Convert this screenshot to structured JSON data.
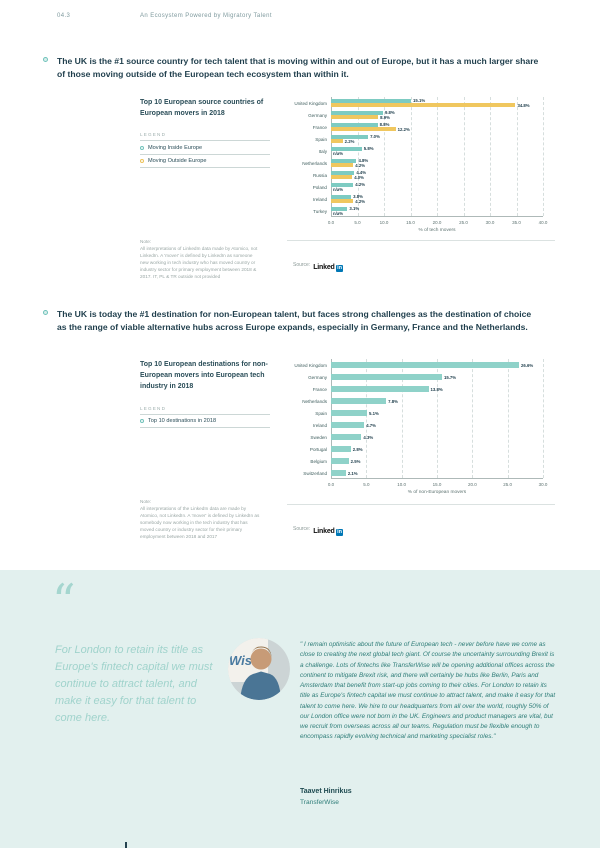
{
  "page": {
    "section_number": "04.3",
    "section_title": "An Ecosystem Powered by Migratory Talent"
  },
  "bullets": [
    {
      "text": "The UK is the #1 source country for tech talent that is moving within and out of Europe, but it has a much larger share of those moving outside of the European tech ecosystem than within it."
    },
    {
      "text": "The UK is today the #1 destination for non-European talent, but faces strong challenges as the destination of choice as the range of viable alternative hubs across Europe expands, especially in Germany, France and the Netherlands."
    }
  ],
  "charts": [
    {
      "title": "Top 10 European source countries of European movers in 2018",
      "legend_label": "LEGEND",
      "legend": [
        {
          "label": "Moving Inside Europe",
          "color": "#6fc2ba"
        },
        {
          "label": "Moving Outside Europe",
          "color": "#edc35a"
        }
      ],
      "note": "Note:\nAll interpretations of LinkedIn data made by Atomico, not LinkedIn. A 'mover' is defined by LinkedIn as someone new working in tech industry who has moved country or industry sector for primary employment between 2018 & 2017. IT, PL & TR outside not provided",
      "source": {
        "label": "Source:",
        "brand": "Linked",
        "brand_suffix": "in"
      },
      "chart_data": {
        "type": "bar",
        "orientation": "horizontal",
        "title": "Top 10 European source countries of European movers in 2018",
        "categories": [
          "United Kingdom",
          "Germany",
          "France",
          "Spain",
          "Italy",
          "Netherlands",
          "Russia",
          "Poland",
          "Ireland",
          "Turkey"
        ],
        "series": [
          {
            "name": "Moving Inside Europe",
            "color": "#7dcbc2",
            "values": [
              15.1,
              9.8,
              8.8,
              7.0,
              5.8,
              4.8,
              4.4,
              4.2,
              3.8,
              3.1
            ],
            "labels": [
              "15.1%",
              "9.8%",
              "8.8%",
              "7.0%",
              "5.8%",
              "4.8%",
              "4.4%",
              "4.2%",
              "3.8%",
              "3.1%"
            ]
          },
          {
            "name": "Moving Outside Europe",
            "color": "#f0c75f",
            "values": [
              34.8,
              8.9,
              12.2,
              2.2,
              null,
              4.2,
              4.0,
              null,
              4.2,
              null
            ],
            "labels": [
              "34.8%",
              "8.9%",
              "12.2%",
              "2.2%",
              "n/a%",
              "4.2%",
              "4.0%",
              "n/a%",
              "4.2%",
              "n/a%"
            ]
          }
        ],
        "xlabel": "% of tech movers",
        "xlim": [
          0,
          40
        ],
        "xticks": [
          "0.0",
          "5.0",
          "10.0",
          "15.0",
          "20.0",
          "25.0",
          "30.0",
          "35.0",
          "40.0"
        ],
        "grid": true,
        "legend_position": "left"
      }
    },
    {
      "title": "Top 10 European destinations for non-European movers into European tech industry in 2018",
      "legend_label": "LEGEND",
      "legend": [
        {
          "label": "Top 10 destinations in 2018",
          "color": "#6fc2ba"
        }
      ],
      "note": "Note:\nAll interpretations of the LinkedIn data are made by Atomico, not LinkedIn. A 'mover' is defined by LinkedIn as somebody now working in the tech industry that has moved country or industry sector for their primary employment between 2018 and 2017",
      "source": {
        "label": "Source:",
        "brand": "Linked",
        "brand_suffix": "in"
      },
      "chart_data": {
        "type": "bar",
        "orientation": "horizontal",
        "title": "Top 10 European destinations for non-European movers into European tech industry in 2018",
        "categories": [
          "United Kingdom",
          "Germany",
          "France",
          "Netherlands",
          "Spain",
          "Ireland",
          "Sweden",
          "Portugal",
          "Belgium",
          "Switzerland"
        ],
        "series": [
          {
            "name": "Top 10 destinations in 2018",
            "color": "#8fd2c9",
            "values": [
              26.6,
              15.7,
              13.8,
              7.8,
              5.1,
              4.7,
              4.3,
              2.8,
              2.5,
              2.1
            ],
            "labels": [
              "26.6%",
              "15.7%",
              "13.8%",
              "7.8%",
              "5.1%",
              "4.7%",
              "4.3%",
              "2.8%",
              "2.5%",
              "2.1%"
            ]
          }
        ],
        "xlabel": "% of non-European movers",
        "xlim": [
          0,
          30
        ],
        "xticks": [
          "0.0",
          "5.0",
          "10.0",
          "15.0",
          "20.0",
          "25.0",
          "30.0"
        ],
        "grid": true,
        "legend_position": "left"
      }
    }
  ],
  "quote": {
    "pull_quote": "For London to retain its title as Europe's fintech capital we must continue to attract talent, and make it easy for that talent to come here.",
    "full_quote": "\" I remain optimistic about the future of European tech - never before have we come as close to creating the next global tech giant. Of course the uncertainty surrounding Brexit is a challenge. Lots of fintechs like TransferWise will be opening additional offices across the continent to mitigate Brexit risk, and there will certainly be hubs like Berlin, Paris and Amsterdam that benefit from start-up jobs coming to their cities. For London to retain its title as Europe's fintech capital we must continue to attract talent, and make it easy for that talent to come here. We hire to our headquarters from all over the world, roughly 50% of our London office were not born in the UK. Engineers and product managers are vital, but we recruit from overseas across all our teams. Regulation must be flexible enough to encompass rapidly evolving technical and marketing specialist roles.\"",
    "author": "Taavet Hinrikus",
    "company": "TransferWise"
  },
  "colors": {
    "accent_teal": "#7dcbc2",
    "accent_yellow": "#f0c75f",
    "navy_text": "#1f3e4c",
    "quote_band_bg": "#e2f0ee",
    "linkedin_blue": "#0077b5"
  }
}
